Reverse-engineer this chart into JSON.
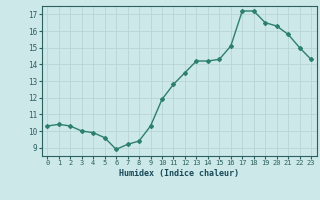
{
  "x": [
    0,
    1,
    2,
    3,
    4,
    5,
    6,
    7,
    8,
    9,
    10,
    11,
    12,
    13,
    14,
    15,
    16,
    17,
    18,
    19,
    20,
    21,
    22,
    23
  ],
  "y": [
    10.3,
    10.4,
    10.3,
    10.0,
    9.9,
    9.6,
    8.9,
    9.2,
    9.4,
    10.3,
    11.9,
    12.8,
    13.5,
    14.2,
    14.2,
    14.3,
    15.1,
    17.2,
    17.2,
    16.5,
    16.3,
    15.8,
    15.0,
    14.3
  ],
  "xlim": [
    -0.5,
    23.5
  ],
  "ylim": [
    8.5,
    17.5
  ],
  "yticks": [
    9,
    10,
    11,
    12,
    13,
    14,
    15,
    16,
    17
  ],
  "xticks": [
    0,
    1,
    2,
    3,
    4,
    5,
    6,
    7,
    8,
    9,
    10,
    11,
    12,
    13,
    14,
    15,
    16,
    17,
    18,
    19,
    20,
    21,
    22,
    23
  ],
  "xlabel": "Humidex (Indice chaleur)",
  "line_color": "#2d7f6e",
  "marker": "D",
  "marker_size": 2.0,
  "line_width": 1.0,
  "bg_color": "#cce8e8",
  "grid_color": "#b8d4d4",
  "tick_color": "#2d6060",
  "label_color": "#1a4a5a",
  "font_family": "monospace"
}
